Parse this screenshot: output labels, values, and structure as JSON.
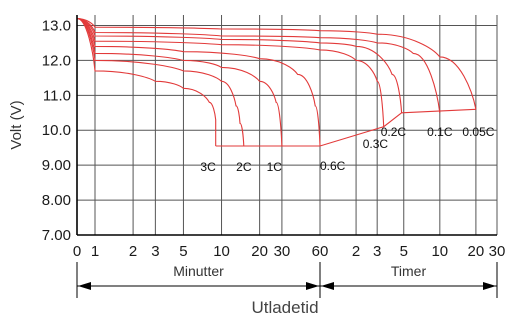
{
  "chart_data": {
    "type": "line",
    "ylabel": "Volt (V)",
    "xlabel": "Utladetid",
    "ylim": [
      7.0,
      13.3
    ],
    "yticks": [
      "7.00",
      "8.00",
      "9.00",
      "10.0",
      "11.0",
      "12.0",
      "13.0"
    ],
    "grid": true,
    "colors": {
      "curve": "#e23a3a",
      "grid": "#555555",
      "axis": "#000000"
    },
    "x_segments": [
      {
        "label": "Minutter",
        "ticks": [
          "0",
          "1",
          "2",
          "3",
          "5",
          "10",
          "20",
          "30",
          "60"
        ]
      },
      {
        "label": "Timer",
        "ticks": [
          "2",
          "3",
          "5",
          "10",
          "20",
          "30"
        ]
      }
    ],
    "series": [
      {
        "name": "3C",
        "x": [
          "0 min",
          "1 min",
          "3 min",
          "5 min",
          "8 min",
          "9 min",
          "9 min"
        ],
        "y": [
          13.2,
          11.7,
          11.4,
          11.2,
          10.8,
          10.3,
          9.55
        ]
      },
      {
        "name": "2C",
        "x": [
          "0 min",
          "1 min",
          "5 min",
          "10 min",
          "13 min",
          "14 min",
          "15 min"
        ],
        "y": [
          13.2,
          12.0,
          11.7,
          11.4,
          10.7,
          10.2,
          9.55
        ]
      },
      {
        "name": "1C",
        "x": [
          "0 min",
          "1 min",
          "5 min",
          "10 min",
          "20 min",
          "27 min",
          "30 min"
        ],
        "y": [
          13.2,
          12.2,
          12.0,
          11.8,
          11.4,
          10.8,
          9.55
        ]
      },
      {
        "name": "0.6C",
        "x": [
          "0 min",
          "1 min",
          "5 min",
          "20 min",
          "40 min",
          "55 min",
          "60 min"
        ],
        "y": [
          13.2,
          12.4,
          12.25,
          12.05,
          11.6,
          10.7,
          9.55
        ]
      },
      {
        "name": "0.3C",
        "x": [
          "0 min",
          "1 min",
          "10 min",
          "60 min",
          "2 h",
          "3 h",
          "3.4 h"
        ],
        "y": [
          13.2,
          12.55,
          12.45,
          12.3,
          12.0,
          11.4,
          10.1
        ]
      },
      {
        "name": "0.2C",
        "x": [
          "0 min",
          "1 min",
          "10 min",
          "60 min",
          "2 h",
          "4 h",
          "4.8 h"
        ],
        "y": [
          13.2,
          12.7,
          12.6,
          12.5,
          12.4,
          11.6,
          10.5
        ]
      },
      {
        "name": "0.1C",
        "x": [
          "0 min",
          "1 min",
          "10 min",
          "60 min",
          "3 h",
          "6 h",
          "10 h"
        ],
        "y": [
          13.2,
          12.8,
          12.7,
          12.65,
          12.5,
          12.2,
          10.5
        ]
      },
      {
        "name": "0.05C",
        "x": [
          "0 min",
          "1 min",
          "10 min",
          "60 min",
          "3 h",
          "10 h",
          "20 h"
        ],
        "y": [
          13.2,
          12.95,
          12.9,
          12.85,
          12.75,
          12.1,
          10.6
        ]
      }
    ],
    "cutoff_line": [
      {
        "x": "9 min",
        "y": 9.55
      },
      {
        "x": "60 min",
        "y": 9.55
      },
      {
        "x": "3.4 h",
        "y": 10.1
      },
      {
        "x": "4.8 h",
        "y": 10.5
      },
      {
        "x": "20 h",
        "y": 10.6
      }
    ]
  }
}
